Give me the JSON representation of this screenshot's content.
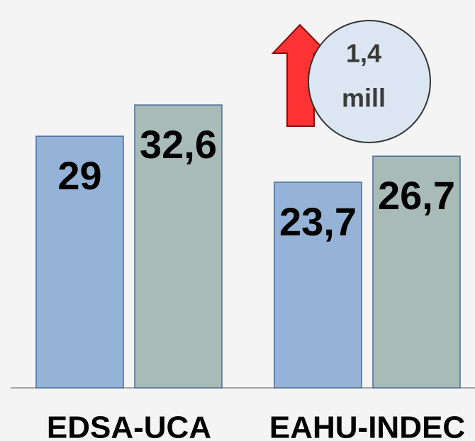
{
  "chart_data": {
    "type": "bar",
    "categories": [
      "EDSA-UCA",
      "EAHU-INDEC"
    ],
    "series": [
      {
        "color": "#95b3d7",
        "values": [
          29,
          23.7
        ],
        "value_labels": [
          "29",
          "23,7"
        ]
      },
      {
        "color": "#a9bbb6",
        "values": [
          32.6,
          26.7
        ],
        "value_labels": [
          "32,6",
          "26,7"
        ]
      }
    ],
    "ylim": [
      0,
      44.7
    ],
    "annotation": {
      "lines": [
        "1,4",
        "mill"
      ],
      "color": "#ff3333"
    }
  }
}
